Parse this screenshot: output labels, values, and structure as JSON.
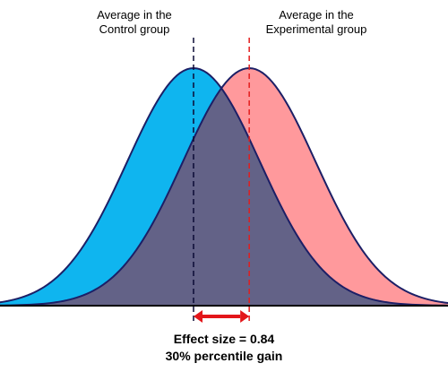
{
  "labels": {
    "control_line1": "Average in the",
    "control_line2": "Control group",
    "experimental_line1": "Average in the",
    "experimental_line2": "Experimental group"
  },
  "result": {
    "effect_size": "Effect size = 0.84",
    "percentile_gain": "30% percentile gain"
  },
  "distributions": {
    "control_mean": 0,
    "experimental_mean": 0.84,
    "standard_deviation": 1
  },
  "colors": {
    "control_fill": "#0fb5ef",
    "experimental_fill": "#ff999c",
    "overlap_fill": "#636287",
    "outline": "#1c1f66",
    "baseline": "#000000",
    "control_mean_line": "#0b0b35",
    "experimental_mean_line": "#e31d1d",
    "arrow": "#e3161a"
  }
}
